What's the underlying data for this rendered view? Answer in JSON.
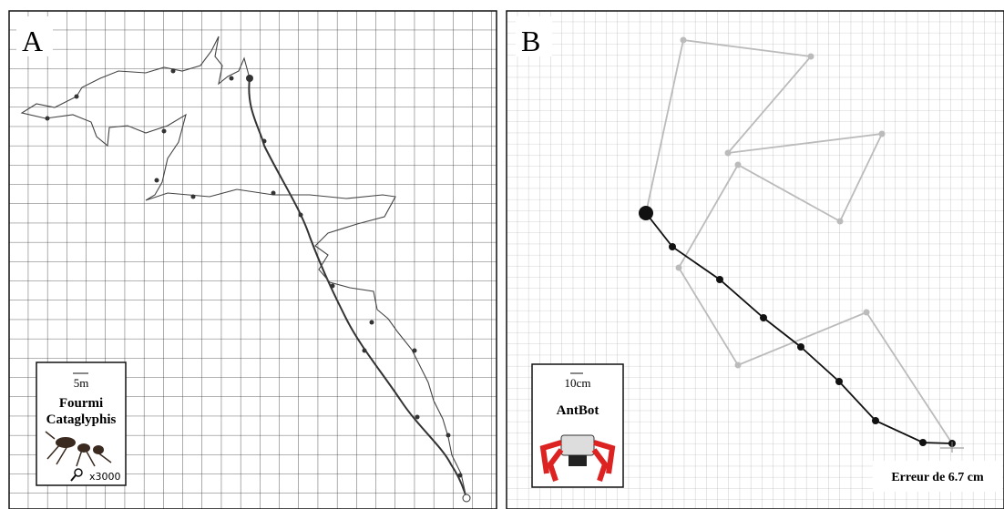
{
  "panels": [
    {
      "label": "A",
      "inset": {
        "scale": "5m",
        "title": [
          "Fourmi",
          "Cataglyphis"
        ],
        "magnification": "x3000"
      }
    },
    {
      "label": "B",
      "inset": {
        "scale": "10cm",
        "title": [
          "AntBot"
        ]
      },
      "error_label": "Erreur de 6.7 cm"
    }
  ]
}
